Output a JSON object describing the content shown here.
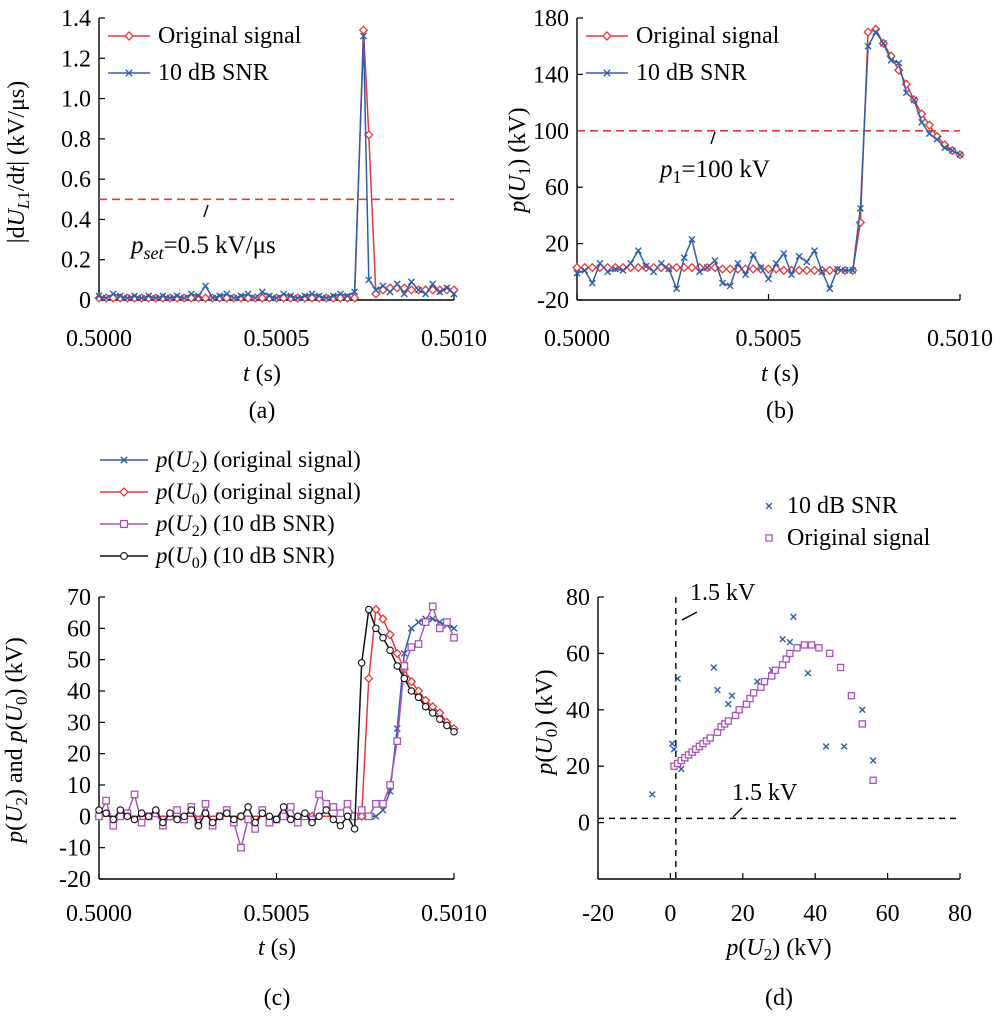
{
  "chart_data": [
    {
      "panel_label": "(a)",
      "type": "line",
      "ylabel": "|dU_L1/dt| (kV/μs)",
      "xlabel": "t (s)",
      "xlim": [
        0.5,
        0.501
      ],
      "ylim": [
        0,
        1.4
      ],
      "xticks": [
        "0.5000",
        "0.5005",
        "0.5010"
      ],
      "yticks": [
        "0",
        "0.2",
        "0.4",
        "0.6",
        "0.8",
        "1.0",
        "1.2",
        "1.4"
      ],
      "legend": {
        "placement": "top-left",
        "items": [
          "Original signal",
          "10 dB SNR"
        ]
      },
      "threshold": {
        "value": 0.5,
        "label_italic": "p",
        "label_sub": "set",
        "label_rest": "=0.5 kV/μs"
      },
      "series": [
        {
          "name": "Original signal",
          "color": "#e8383b",
          "marker": "diamond",
          "x": [
            0.5,
            0.50002,
            0.50004,
            0.50006,
            0.50008,
            0.5001,
            0.50012,
            0.50014,
            0.50016,
            0.50018,
            0.5002,
            0.50022,
            0.50024,
            0.50026,
            0.50028,
            0.5003,
            0.50032,
            0.50034,
            0.50036,
            0.50038,
            0.5004,
            0.50042,
            0.50044,
            0.50046,
            0.50048,
            0.5005,
            0.50052,
            0.50054,
            0.50056,
            0.50058,
            0.5006,
            0.50062,
            0.50064,
            0.50066,
            0.50068,
            0.5007,
            0.50072,
            0.500745,
            0.50076,
            0.50078,
            0.5008,
            0.50082,
            0.50084,
            0.50086,
            0.50088,
            0.5009,
            0.50092,
            0.50094,
            0.50096,
            0.50098,
            0.501
          ],
          "y": [
            0.01,
            0.01,
            0.01,
            0.01,
            0.01,
            0.01,
            0.01,
            0.01,
            0.01,
            0.01,
            0.01,
            0.01,
            0.01,
            0.01,
            0.01,
            0.01,
            0.01,
            0.01,
            0.01,
            0.01,
            0.01,
            0.01,
            0.01,
            0.01,
            0.01,
            0.01,
            0.01,
            0.01,
            0.01,
            0.01,
            0.01,
            0.01,
            0.01,
            0.01,
            0.01,
            0.01,
            0.01,
            1.34,
            0.82,
            0.03,
            0.05,
            0.06,
            0.06,
            0.06,
            0.05,
            0.05,
            0.05,
            0.05,
            0.05,
            0.05,
            0.05
          ]
        },
        {
          "name": "10 dB SNR",
          "color": "#2e5fa8",
          "marker": "x",
          "x": [
            0.5,
            0.50002,
            0.50004,
            0.50006,
            0.50008,
            0.5001,
            0.50012,
            0.50014,
            0.50016,
            0.50018,
            0.5002,
            0.50022,
            0.50024,
            0.50026,
            0.50028,
            0.5003,
            0.50032,
            0.50034,
            0.50036,
            0.50038,
            0.5004,
            0.50042,
            0.50044,
            0.50046,
            0.50048,
            0.5005,
            0.50052,
            0.50054,
            0.50056,
            0.50058,
            0.5006,
            0.50062,
            0.50064,
            0.50066,
            0.50068,
            0.5007,
            0.50072,
            0.500745,
            0.50076,
            0.50078,
            0.5008,
            0.50082,
            0.50084,
            0.50086,
            0.50088,
            0.5009,
            0.50092,
            0.50094,
            0.50096,
            0.50098,
            0.501
          ],
          "y": [
            0.02,
            0.01,
            0.03,
            0.02,
            0.01,
            0.02,
            0.01,
            0.02,
            0.01,
            0.02,
            0.01,
            0.02,
            0.01,
            0.03,
            0.02,
            0.07,
            0.01,
            0.02,
            0.03,
            0.01,
            0.02,
            0.03,
            0.01,
            0.04,
            0.02,
            0.01,
            0.03,
            0.02,
            0.01,
            0.02,
            0.03,
            0.02,
            0.01,
            0.02,
            0.03,
            0.02,
            0.04,
            1.31,
            0.1,
            0.05,
            0.07,
            0.04,
            0.08,
            0.03,
            0.09,
            0.05,
            0.03,
            0.08,
            0.04,
            0.06,
            0.03
          ]
        }
      ]
    },
    {
      "panel_label": "(b)",
      "type": "line",
      "ylabel": "p(U1) (kV)",
      "xlabel": "t (s)",
      "xlim": [
        0.5,
        0.501
      ],
      "ylim": [
        -20,
        180
      ],
      "xticks": [
        "0.5000",
        "0.5005",
        "0.5010"
      ],
      "yticks": [
        "-20",
        "20",
        "60",
        "100",
        "140",
        "180"
      ],
      "legend": {
        "placement": "top-left",
        "items": [
          "Original signal",
          "10 dB SNR"
        ]
      },
      "threshold": {
        "value": 100,
        "label_italic": "p",
        "label_sub": "1",
        "label_rest": "=100 kV"
      },
      "series": [
        {
          "name": "Original signal",
          "color": "#e8383b",
          "marker": "diamond",
          "x": [
            0.5,
            0.50002,
            0.50004,
            0.50006,
            0.50008,
            0.5001,
            0.50012,
            0.50014,
            0.50016,
            0.50018,
            0.5002,
            0.50022,
            0.50024,
            0.50026,
            0.50028,
            0.5003,
            0.50032,
            0.50034,
            0.50036,
            0.50038,
            0.5004,
            0.50042,
            0.50044,
            0.50046,
            0.50048,
            0.5005,
            0.50052,
            0.50054,
            0.50056,
            0.50058,
            0.5006,
            0.50062,
            0.50064,
            0.50066,
            0.50068,
            0.5007,
            0.50072,
            0.50074,
            0.50076,
            0.50078,
            0.5008,
            0.50082,
            0.50084,
            0.50086,
            0.50088,
            0.5009,
            0.50092,
            0.50094,
            0.50096,
            0.50098,
            0.501
          ],
          "y": [
            3,
            3,
            3,
            3,
            3,
            3,
            3,
            3,
            3,
            3,
            3,
            3,
            3,
            3,
            3,
            3,
            3,
            3,
            3,
            2,
            2,
            2,
            2,
            2,
            2,
            2,
            2,
            1,
            1,
            1,
            1,
            1,
            1,
            1,
            1,
            1,
            1,
            35,
            170,
            172,
            162,
            153,
            143,
            133,
            122,
            112,
            104,
            96,
            90,
            86,
            83
          ]
        },
        {
          "name": "10 dB SNR",
          "color": "#2e5fa8",
          "marker": "x",
          "x": [
            0.5,
            0.50002,
            0.50004,
            0.50006,
            0.50008,
            0.5001,
            0.50012,
            0.50014,
            0.50016,
            0.50018,
            0.5002,
            0.50022,
            0.50024,
            0.50026,
            0.50028,
            0.5003,
            0.50032,
            0.50034,
            0.50036,
            0.50038,
            0.5004,
            0.50042,
            0.50044,
            0.50046,
            0.50048,
            0.5005,
            0.50052,
            0.50054,
            0.50056,
            0.50058,
            0.5006,
            0.50062,
            0.50064,
            0.50066,
            0.50068,
            0.5007,
            0.50072,
            0.50074,
            0.50076,
            0.50078,
            0.5008,
            0.50082,
            0.50084,
            0.50086,
            0.50088,
            0.5009,
            0.50092,
            0.50094,
            0.50096,
            0.50098,
            0.501
          ],
          "y": [
            -1,
            1,
            -8,
            6,
            0,
            2,
            1,
            6,
            15,
            4,
            0,
            6,
            2,
            -12,
            10,
            23,
            0,
            3,
            8,
            -8,
            -10,
            6,
            -2,
            12,
            3,
            -5,
            6,
            13,
            -2,
            11,
            7,
            15,
            0,
            -12,
            2,
            1,
            1,
            45,
            160,
            170,
            162,
            150,
            148,
            127,
            122,
            106,
            98,
            94,
            88,
            86,
            83
          ]
        }
      ]
    },
    {
      "panel_label": "(c)",
      "type": "line",
      "ylabel": "p(U2) and p(U0) (kV)",
      "xlabel": "t (s)",
      "xlim": [
        0.5,
        0.501
      ],
      "ylim": [
        -20,
        70
      ],
      "xticks": [
        "0.5000",
        "0.5005",
        "0.5010"
      ],
      "yticks": [
        "-20",
        "-10",
        "0",
        "10",
        "20",
        "30",
        "40",
        "50",
        "60",
        "70"
      ],
      "legend": {
        "placement": "above",
        "items": [
          "p(U2) (original signal)",
          "p(U0) (original signal)",
          "p(U2) (10 dB SNR)",
          "p(U0) (10 dB SNR)"
        ]
      },
      "series": [
        {
          "name": "p(U2) (original signal)",
          "color": "#2e5fa8",
          "marker": "x",
          "x": [
            0.5,
            0.5002,
            0.5004,
            0.5006,
            0.50074,
            0.50078,
            0.5008,
            0.50082,
            0.50084,
            0.50086,
            0.50088,
            0.5009,
            0.50092,
            0.50094,
            0.50096,
            0.50098,
            0.501
          ],
          "y": [
            0,
            0,
            0,
            0,
            0,
            0,
            2,
            8,
            28,
            52,
            60,
            62,
            63,
            63,
            62,
            61,
            60
          ]
        },
        {
          "name": "p(U0) (original signal)",
          "color": "#e8383b",
          "marker": "diamond",
          "x": [
            0.5,
            0.5002,
            0.5004,
            0.5006,
            0.50072,
            0.50074,
            0.50076,
            0.50078,
            0.5008,
            0.50082,
            0.50084,
            0.50086,
            0.50088,
            0.5009,
            0.50092,
            0.50094,
            0.50096,
            0.50098,
            0.501
          ],
          "y": [
            0,
            0,
            0,
            0,
            0,
            0,
            44,
            66,
            63,
            58,
            52,
            47,
            43,
            40,
            37,
            35,
            33,
            30,
            28
          ]
        },
        {
          "name": "p(U2) (10 dB SNR)",
          "color": "#a855b8",
          "marker": "square",
          "x": [
            0.5,
            0.50002,
            0.50004,
            0.50006,
            0.50008,
            0.5001,
            0.50012,
            0.50014,
            0.50016,
            0.50018,
            0.5002,
            0.50022,
            0.50024,
            0.50026,
            0.50028,
            0.5003,
            0.50032,
            0.50034,
            0.50036,
            0.50038,
            0.5004,
            0.50042,
            0.50044,
            0.50046,
            0.50048,
            0.5005,
            0.50052,
            0.50054,
            0.50056,
            0.50058,
            0.5006,
            0.50062,
            0.50064,
            0.50066,
            0.50068,
            0.5007,
            0.50072,
            0.50074,
            0.50076,
            0.50078,
            0.5008,
            0.50082,
            0.50084,
            0.50086,
            0.50088,
            0.5009,
            0.50092,
            0.50094,
            0.50096,
            0.50098,
            0.501
          ],
          "y": [
            0,
            5,
            -3,
            0,
            1,
            7,
            -2,
            0,
            1,
            -3,
            0,
            2,
            -1,
            3,
            -2,
            4,
            -3,
            0,
            2,
            -2,
            -10,
            -1,
            -4,
            2,
            -2,
            -1,
            0,
            3,
            -2,
            0,
            -1,
            7,
            4,
            3,
            1,
            4,
            0,
            2,
            0,
            4,
            4,
            10,
            24,
            48,
            54,
            55,
            62,
            67,
            60,
            62,
            57
          ]
        },
        {
          "name": "p(U0) (10 dB SNR)",
          "color": "#111111",
          "marker": "circle",
          "x": [
            0.5,
            0.50002,
            0.50004,
            0.50006,
            0.50008,
            0.5001,
            0.50012,
            0.50014,
            0.50016,
            0.50018,
            0.5002,
            0.50022,
            0.50024,
            0.50026,
            0.50028,
            0.5003,
            0.50032,
            0.50034,
            0.50036,
            0.50038,
            0.5004,
            0.50042,
            0.50044,
            0.50046,
            0.50048,
            0.5005,
            0.50052,
            0.50054,
            0.50056,
            0.50058,
            0.5006,
            0.50062,
            0.50064,
            0.50066,
            0.50068,
            0.5007,
            0.50072,
            0.50074,
            0.50076,
            0.50078,
            0.5008,
            0.50082,
            0.50084,
            0.50086,
            0.50088,
            0.5009,
            0.50092,
            0.50094,
            0.50096,
            0.50098,
            0.501
          ],
          "y": [
            2,
            1,
            -1,
            2,
            0,
            -1,
            1,
            0,
            2,
            -2,
            1,
            -1,
            0,
            2,
            -3,
            1,
            -2,
            0,
            1,
            -1,
            0,
            3,
            -2,
            1,
            0,
            -1,
            3,
            -1,
            0,
            1,
            -2,
            0,
            2,
            -1,
            -3,
            0,
            -4,
            49,
            66,
            60,
            57,
            53,
            48,
            44,
            40,
            38,
            35,
            33,
            31,
            29,
            27
          ]
        }
      ]
    },
    {
      "panel_label": "(d)",
      "type": "scatter",
      "ylabel": "p(U0) (kV)",
      "xlabel": "p(U2) (kV)",
      "xlim": [
        -20,
        80
      ],
      "ylim": [
        -20,
        80
      ],
      "xticks": [
        "-20",
        "0",
        "20",
        "40",
        "60",
        "80"
      ],
      "yticks": [
        "0",
        "20",
        "40",
        "60",
        "80"
      ],
      "legend": {
        "placement": "top-right",
        "items": [
          "10 dB SNR",
          "Original signal"
        ]
      },
      "hline": {
        "value": 1.5,
        "label": "1.5 kV"
      },
      "vline": {
        "value": 1.5,
        "label": "1.5 kV"
      },
      "series": [
        {
          "name": "10 dB SNR",
          "color": "#2e5fa8",
          "marker": "x",
          "x": [
            -5,
            0.5,
            1,
            2,
            3,
            12,
            13,
            16,
            17,
            19,
            24,
            28,
            31,
            33,
            34,
            38,
            43,
            48,
            53,
            56
          ],
          "y": [
            10,
            28,
            26,
            51,
            19,
            55,
            47,
            42,
            45,
            40,
            50,
            54,
            65,
            64,
            73,
            53,
            27,
            27,
            40,
            22
          ]
        },
        {
          "name": "Original signal",
          "color": "#a855b8",
          "marker": "square",
          "x": [
            1,
            2,
            3,
            4,
            5,
            6,
            7,
            8,
            9,
            10,
            11,
            13,
            14,
            15,
            16,
            18,
            19,
            21,
            22,
            23,
            25,
            26,
            28,
            29,
            31,
            32,
            33,
            35,
            37,
            39,
            41,
            44,
            47,
            50,
            53,
            56
          ],
          "y": [
            20,
            21,
            22,
            23,
            24,
            25,
            26,
            27,
            28,
            29,
            30,
            32,
            34,
            35,
            36,
            38,
            40,
            42,
            44,
            46,
            48,
            50,
            52,
            54,
            56,
            58,
            60,
            62,
            63,
            63,
            62,
            60,
            55,
            45,
            35,
            15
          ]
        }
      ]
    }
  ]
}
